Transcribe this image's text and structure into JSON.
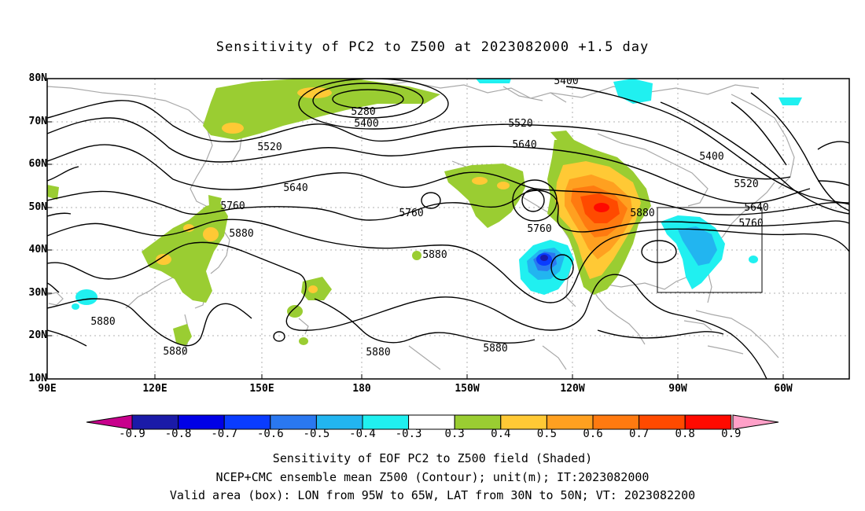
{
  "title": "Sensitivity of PC2 to Z500 at 2023082000 +1.5 day",
  "map": {
    "lat_labels": [
      "80N",
      "70N",
      "60N",
      "50N",
      "40N",
      "30N",
      "20N",
      "10N"
    ],
    "lon_labels": [
      "90E",
      "120E",
      "150E",
      "180",
      "150W",
      "120W",
      "90W",
      "60W"
    ],
    "contour_labels": [
      "5400",
      "5280",
      "5400",
      "5520",
      "5520",
      "5640",
      "5640",
      "5760",
      "5760",
      "5760",
      "5880",
      "5880",
      "5880",
      "5880",
      "5880",
      "5880",
      "5880",
      "5400",
      "5520",
      "5640",
      "5760"
    ]
  },
  "valid_box": {
    "lon_from": "95W",
    "lon_to": "65W",
    "lat_from": "30N",
    "lat_to": "50N"
  },
  "colorbar": {
    "labels": [
      "-0.9",
      "-0.8",
      "-0.7",
      "-0.6",
      "-0.5",
      "-0.4",
      "-0.3",
      "0.3",
      "0.4",
      "0.5",
      "0.6",
      "0.7",
      "0.8",
      "0.9"
    ],
    "colors": [
      "#1a1aa8",
      "#0000e6",
      "#0a3cff",
      "#2a78f0",
      "#22b5f0",
      "#20f0f0",
      "#ffffff",
      "#9acd32",
      "#ffc935",
      "#ffa020",
      "#ff7a10",
      "#ff4a00",
      "#ff0a00"
    ],
    "low_end_color": "#c8008c",
    "high_end_color": "#ffa0c8"
  },
  "caption": {
    "line1": "Sensitivity of EOF PC2 to Z500 field (Shaded)",
    "line2": "NCEP+CMC ensemble mean Z500 (Contour); unit(m); IT:2023082000",
    "line3": "Valid area (box): LON from 95W to 65W, LAT from 30N to 50N; VT: 2023082200"
  }
}
